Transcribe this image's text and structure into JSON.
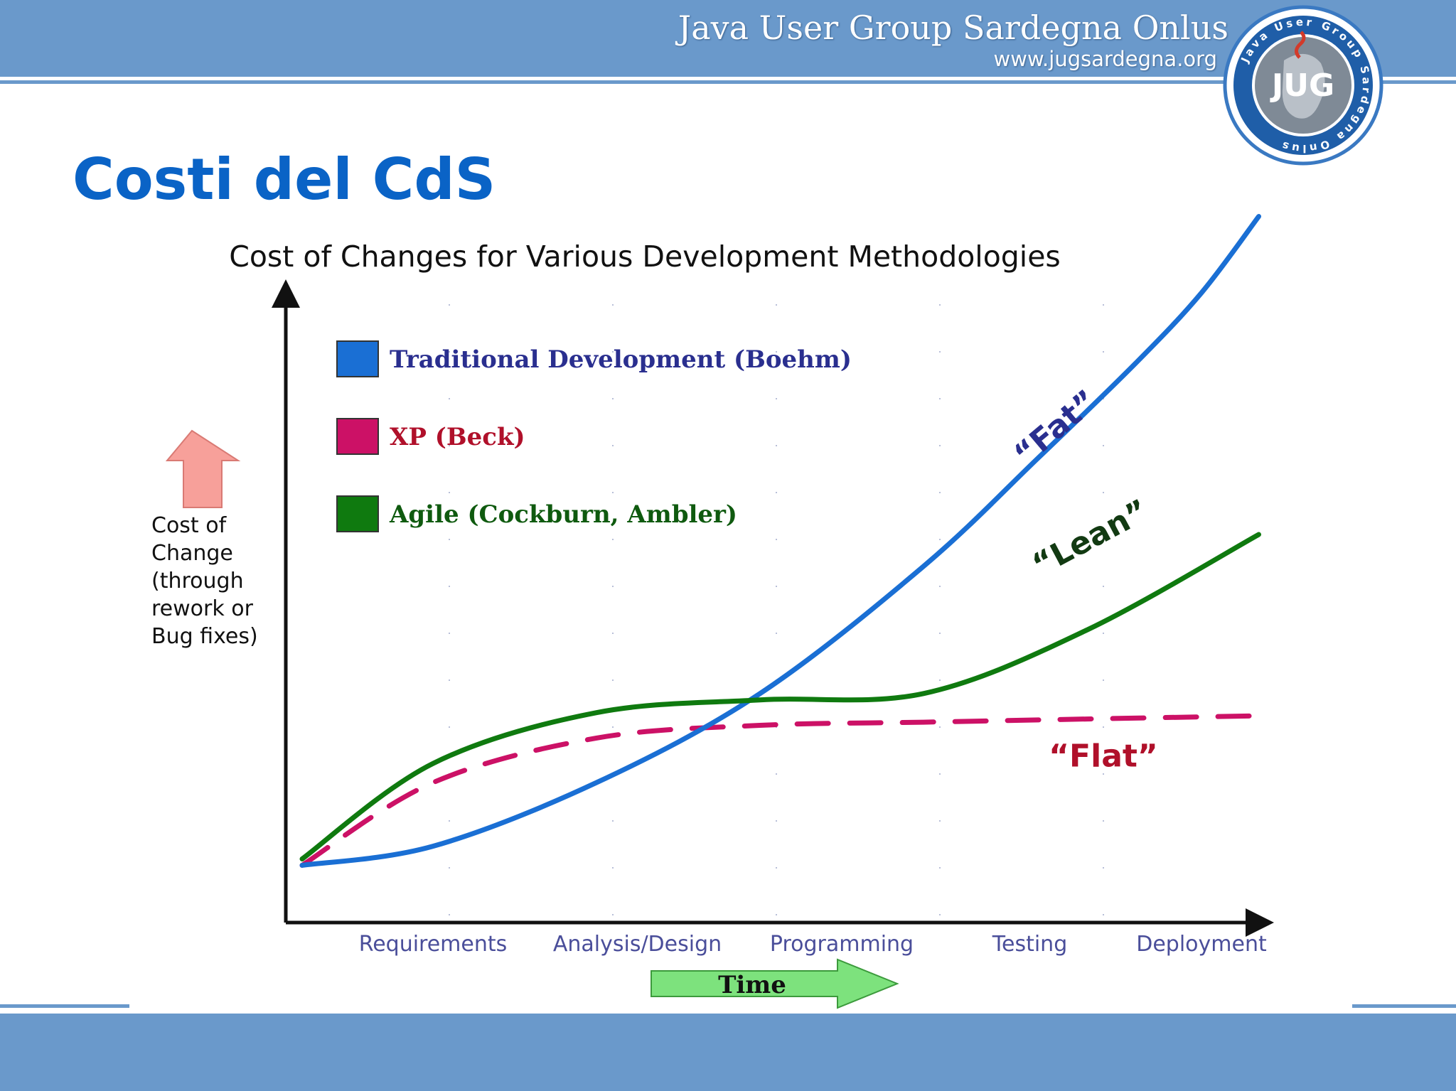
{
  "header": {
    "org_name": "Java User Group Sardegna Onlus",
    "org_url": "www.jugsardegna.org",
    "logo_ring_text": "Java User Group Sardegna Onlus",
    "logo_text": "JUG"
  },
  "slide": {
    "title": "Costi del CdS"
  },
  "colors": {
    "band": "#6a99cb",
    "title": "#0a63c6",
    "traditional": "#1a6fd4",
    "xp": "#cc1166",
    "agile": "#0f7a0f"
  },
  "chart_data": {
    "type": "line",
    "title": "Cost of Changes for Various Development Methodologies",
    "ylabel": [
      "Cost of",
      "Change",
      "(through",
      "rework or",
      "Bug fixes)"
    ],
    "xlabel": "Time",
    "categories": [
      "Requirements",
      "Analysis/Design",
      "Programming",
      "Testing",
      "Deployment"
    ],
    "x_range": [
      0,
      6
    ],
    "y_range": [
      0,
      10
    ],
    "grid": "dotted",
    "legend_position": "top-left",
    "legend": [
      {
        "label": "Traditional Development (Boehm)",
        "color": "#1a6fd4"
      },
      {
        "label": "XP (Beck)",
        "color": "#cc1166"
      },
      {
        "label": "Agile (Cockburn, Ambler)",
        "color": "#0f7a0f"
      }
    ],
    "series": [
      {
        "name": "Traditional Development (Boehm)",
        "color": "#1a6fd4",
        "style": "solid",
        "annotation": "“Fat”",
        "x": [
          0.1,
          0.9,
          1.9,
          2.9,
          3.9,
          4.6,
          5.2,
          5.6,
          5.95
        ],
        "y": [
          0.9,
          1.2,
          2.2,
          3.6,
          5.6,
          7.3,
          8.8,
          9.9,
          11.1
        ]
      },
      {
        "name": "XP (Beck)",
        "color": "#cc1166",
        "style": "dashed",
        "annotation": "“Flat”",
        "x": [
          0.1,
          0.9,
          1.9,
          2.9,
          3.9,
          4.9,
          5.95
        ],
        "y": [
          0.9,
          2.2,
          2.9,
          3.1,
          3.15,
          3.2,
          3.25
        ]
      },
      {
        "name": "Agile (Cockburn, Ambler)",
        "color": "#0f7a0f",
        "style": "solid",
        "annotation": "“Lean”",
        "x": [
          0.1,
          0.9,
          1.9,
          2.9,
          3.9,
          4.9,
          5.95
        ],
        "y": [
          1.0,
          2.5,
          3.3,
          3.5,
          3.6,
          4.6,
          6.1
        ]
      }
    ]
  }
}
